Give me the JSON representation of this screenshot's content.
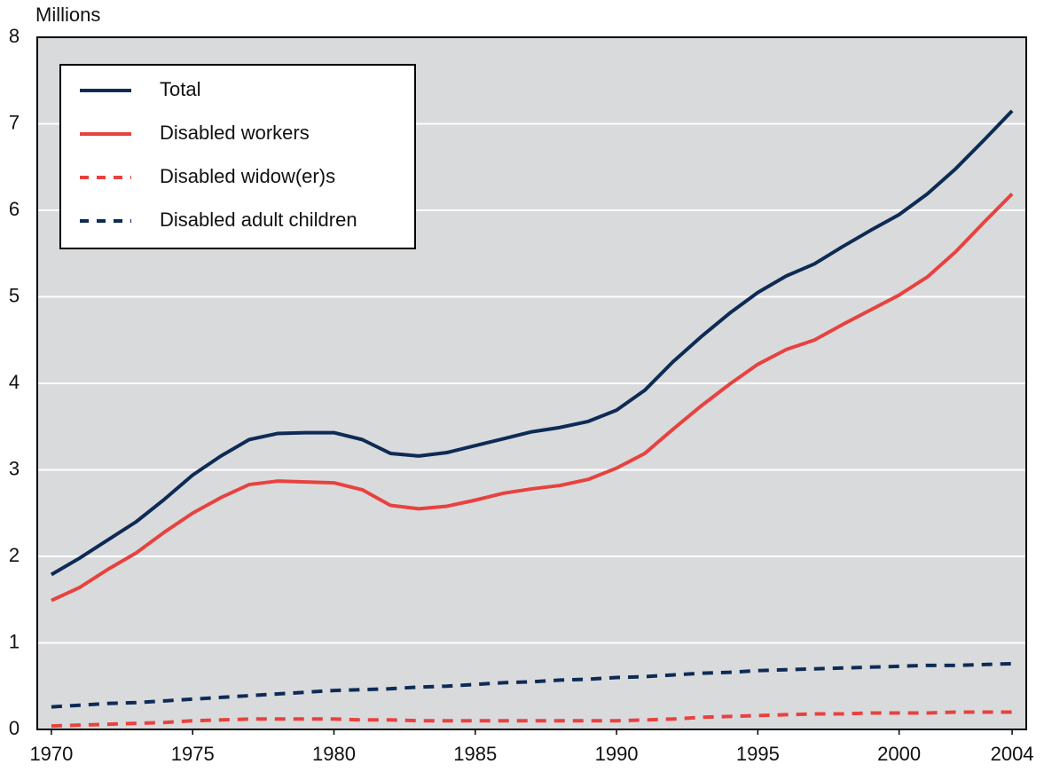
{
  "chart_data": {
    "type": "line",
    "ylabel": "Millions",
    "x": [
      1970,
      1971,
      1972,
      1973,
      1974,
      1975,
      1976,
      1977,
      1978,
      1979,
      1980,
      1981,
      1982,
      1983,
      1984,
      1985,
      1986,
      1987,
      1988,
      1989,
      1990,
      1991,
      1992,
      1993,
      1994,
      1995,
      1996,
      1997,
      1998,
      1999,
      2000,
      2001,
      2002,
      2003,
      2004
    ],
    "series": [
      {
        "name": "Total",
        "color": "#0d2b55",
        "line_style": "solid",
        "values": [
          1.79,
          1.98,
          2.19,
          2.4,
          2.66,
          2.94,
          3.16,
          3.35,
          3.42,
          3.43,
          3.43,
          3.35,
          3.19,
          3.16,
          3.2,
          3.28,
          3.36,
          3.44,
          3.49,
          3.56,
          3.69,
          3.92,
          4.25,
          4.54,
          4.81,
          5.05,
          5.24,
          5.38,
          5.58,
          5.77,
          5.95,
          6.19,
          6.48,
          6.81,
          7.15
        ]
      },
      {
        "name": "Disabled workers",
        "color": "#e8423f",
        "line_style": "solid",
        "values": [
          1.49,
          1.64,
          1.85,
          2.04,
          2.28,
          2.5,
          2.68,
          2.83,
          2.87,
          2.86,
          2.85,
          2.77,
          2.59,
          2.55,
          2.58,
          2.65,
          2.73,
          2.78,
          2.82,
          2.89,
          3.02,
          3.19,
          3.47,
          3.74,
          3.99,
          4.22,
          4.39,
          4.5,
          4.68,
          4.85,
          5.02,
          5.23,
          5.52,
          5.86,
          6.19
        ]
      },
      {
        "name": "Disabled widow(er)s",
        "color": "#e8423f",
        "line_style": "dashed",
        "values": [
          0.04,
          0.05,
          0.06,
          0.07,
          0.08,
          0.1,
          0.11,
          0.12,
          0.12,
          0.12,
          0.12,
          0.11,
          0.11,
          0.1,
          0.1,
          0.1,
          0.1,
          0.1,
          0.1,
          0.1,
          0.1,
          0.11,
          0.12,
          0.14,
          0.15,
          0.16,
          0.17,
          0.18,
          0.18,
          0.19,
          0.19,
          0.19,
          0.2,
          0.2,
          0.2
        ]
      },
      {
        "name": "Disabled adult children",
        "color": "#0d2b55",
        "line_style": "dashed",
        "values": [
          0.26,
          0.28,
          0.3,
          0.31,
          0.33,
          0.35,
          0.37,
          0.39,
          0.41,
          0.43,
          0.45,
          0.46,
          0.47,
          0.49,
          0.5,
          0.52,
          0.54,
          0.55,
          0.57,
          0.58,
          0.6,
          0.61,
          0.63,
          0.65,
          0.66,
          0.68,
          0.69,
          0.7,
          0.71,
          0.72,
          0.73,
          0.74,
          0.74,
          0.75,
          0.76
        ]
      }
    ],
    "xlim": [
      1969.5,
      2004.5
    ],
    "xticks": [
      1970,
      1975,
      1980,
      1985,
      1990,
      1995,
      2000,
      2004
    ],
    "ylim": [
      0,
      8
    ],
    "yticks": [
      0,
      1,
      2,
      3,
      4,
      5,
      6,
      7,
      8
    ],
    "grid": true,
    "legend": "upper left",
    "background": "#d9dadc"
  }
}
